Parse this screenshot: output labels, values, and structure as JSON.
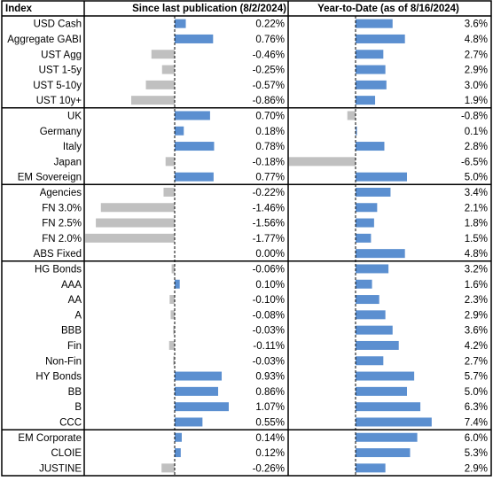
{
  "headers": {
    "index": "Index",
    "since": "Since last publication (8/2/2024)",
    "ytd": "Year-to-Date (as of 8/16/2024)"
  },
  "colors": {
    "positive": "#5b8fd0",
    "negative": "#c0c0c0",
    "border": "#000000"
  },
  "chart_data": {
    "type": "bar",
    "groups": [
      {
        "rows": [
          {
            "label": "USD Cash",
            "since": 0.22,
            "since_label": "0.22%",
            "ytd": 3.6,
            "ytd_label": "3.6%"
          },
          {
            "label": "Aggregate GABI",
            "since": 0.76,
            "since_label": "0.76%",
            "ytd": 4.8,
            "ytd_label": "4.8%"
          },
          {
            "label": "UST Agg",
            "since": -0.46,
            "since_label": "-0.46%",
            "ytd": 2.7,
            "ytd_label": "2.7%"
          },
          {
            "label": "UST 1-5y",
            "since": -0.25,
            "since_label": "-0.25%",
            "ytd": 2.9,
            "ytd_label": "2.9%"
          },
          {
            "label": "UST 5-10y",
            "since": -0.57,
            "since_label": "-0.57%",
            "ytd": 3.0,
            "ytd_label": "3.0%"
          },
          {
            "label": "UST 10y+",
            "since": -0.86,
            "since_label": "-0.86%",
            "ytd": 1.9,
            "ytd_label": "1.9%"
          }
        ]
      },
      {
        "rows": [
          {
            "label": "UK",
            "since": 0.7,
            "since_label": "0.70%",
            "ytd": -0.8,
            "ytd_label": "-0.8%"
          },
          {
            "label": "Germany",
            "since": 0.18,
            "since_label": "0.18%",
            "ytd": 0.1,
            "ytd_label": "0.1%"
          },
          {
            "label": "Italy",
            "since": 0.78,
            "since_label": "0.78%",
            "ytd": 2.8,
            "ytd_label": "2.8%"
          },
          {
            "label": "Japan",
            "since": -0.18,
            "since_label": "-0.18%",
            "ytd": -6.5,
            "ytd_label": "-6.5%"
          },
          {
            "label": "EM Sovereign",
            "since": 0.77,
            "since_label": "0.77%",
            "ytd": 5.0,
            "ytd_label": "5.0%"
          }
        ]
      },
      {
        "rows": [
          {
            "label": "Agencies",
            "since": -0.22,
            "since_label": "-0.22%",
            "ytd": 3.4,
            "ytd_label": "3.4%"
          },
          {
            "label": "FN 3.0%",
            "since": -1.46,
            "since_label": "-1.46%",
            "ytd": 2.1,
            "ytd_label": "2.1%"
          },
          {
            "label": "FN 2.5%",
            "since": -1.56,
            "since_label": "-1.56%",
            "ytd": 1.8,
            "ytd_label": "1.8%"
          },
          {
            "label": "FN 2.0%",
            "since": -1.77,
            "since_label": "-1.77%",
            "ytd": 1.5,
            "ytd_label": "1.5%"
          },
          {
            "label": "ABS Fixed",
            "since": 0.0,
            "since_label": "0.00%",
            "ytd": 4.8,
            "ytd_label": "4.8%"
          }
        ]
      },
      {
        "rows": [
          {
            "label": "HG Bonds",
            "since": -0.06,
            "since_label": "-0.06%",
            "ytd": 3.2,
            "ytd_label": "3.2%"
          },
          {
            "label": "AAA",
            "since": 0.1,
            "since_label": "0.10%",
            "ytd": 1.6,
            "ytd_label": "1.6%"
          },
          {
            "label": "AA",
            "since": -0.1,
            "since_label": "-0.10%",
            "ytd": 2.3,
            "ytd_label": "2.3%"
          },
          {
            "label": "A",
            "since": -0.08,
            "since_label": "-0.08%",
            "ytd": 2.9,
            "ytd_label": "2.9%"
          },
          {
            "label": "BBB",
            "since": -0.03,
            "since_label": "-0.03%",
            "ytd": 3.6,
            "ytd_label": "3.6%"
          },
          {
            "label": "Fin",
            "since": -0.11,
            "since_label": "-0.11%",
            "ytd": 4.2,
            "ytd_label": "4.2%"
          },
          {
            "label": "Non-Fin",
            "since": -0.03,
            "since_label": "-0.03%",
            "ytd": 2.7,
            "ytd_label": "2.7%"
          },
          {
            "label": "HY Bonds",
            "since": 0.93,
            "since_label": "0.93%",
            "ytd": 5.7,
            "ytd_label": "5.7%"
          },
          {
            "label": "BB",
            "since": 0.86,
            "since_label": "0.86%",
            "ytd": 5.0,
            "ytd_label": "5.0%"
          },
          {
            "label": "B",
            "since": 1.07,
            "since_label": "1.07%",
            "ytd": 6.3,
            "ytd_label": "6.3%"
          },
          {
            "label": "CCC",
            "since": 0.55,
            "since_label": "0.55%",
            "ytd": 7.4,
            "ytd_label": "7.4%"
          }
        ]
      },
      {
        "rows": [
          {
            "label": "EM Corporate",
            "since": 0.14,
            "since_label": "0.14%",
            "ytd": 6.0,
            "ytd_label": "6.0%"
          },
          {
            "label": "CLOIE",
            "since": 0.12,
            "since_label": "0.12%",
            "ytd": 5.3,
            "ytd_label": "5.3%"
          },
          {
            "label": "JUSTINE",
            "since": -0.26,
            "since_label": "-0.26%",
            "ytd": 2.9,
            "ytd_label": "2.9%"
          }
        ]
      }
    ]
  }
}
